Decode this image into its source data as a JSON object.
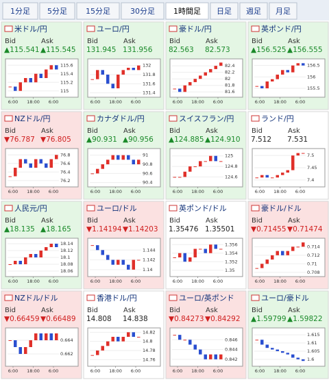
{
  "tabs": [
    "1分足",
    "5分足",
    "15分足",
    "30分足",
    "1時間足",
    "日足",
    "週足",
    "月足"
  ],
  "selected_tab": 4,
  "panels": [
    {
      "name": "米ドル/円",
      "change": "up",
      "bid": "▲115.541",
      "ask": "▲115.545",
      "yticks": [
        115.6,
        115.4,
        115.2,
        115
      ],
      "ylim": [
        114.9,
        115.7
      ],
      "xticks": [
        "6:00",
        "18:00",
        "6:00"
      ],
      "closes": [
        115.1,
        115.0,
        115.2,
        115.3,
        115.2,
        115.4,
        115.3,
        115.5,
        115.6,
        115.5
      ]
    },
    {
      "name": "ユーロ/円",
      "change": "up",
      "bid": "131.945",
      "ask": "131.956",
      "yticks": [
        132,
        131.8,
        131.6,
        131.4
      ],
      "ylim": [
        131.35,
        132.1
      ],
      "xticks": [
        "6:00",
        "18:00",
        "6:00"
      ],
      "closes": [
        131.7,
        131.9,
        131.8,
        131.6,
        131.5,
        131.8,
        131.9,
        131.95,
        131.9,
        132.0
      ]
    },
    {
      "name": "豪ドル/円",
      "change": "up",
      "bid": "82.563",
      "ask": "82.573",
      "yticks": [
        82.4,
        82.2,
        82,
        81.8,
        81.6
      ],
      "ylim": [
        81.5,
        82.55
      ],
      "xticks": [
        "6:00",
        "18:00",
        "6:00"
      ],
      "closes": [
        81.7,
        81.6,
        81.8,
        81.9,
        82.0,
        82.1,
        82.2,
        82.3,
        82.4,
        82.5
      ]
    },
    {
      "name": "英ポンド/円",
      "change": "up",
      "bid": "▲156.525",
      "ask": "▲156.555",
      "yticks": [
        156.5,
        156,
        155.5
      ],
      "ylim": [
        155.2,
        156.7
      ],
      "xticks": [
        "6:00",
        "18:00",
        "6:00"
      ],
      "closes": [
        155.6,
        155.5,
        155.8,
        155.9,
        156.1,
        156.3,
        156.2,
        156.5,
        156.6,
        156.5
      ]
    },
    {
      "name": "NZドル/円",
      "change": "down",
      "bid": "▼76.787",
      "ask": "▼76.805",
      "yticks": [
        76.8,
        76.6,
        76.4,
        76.2
      ],
      "ylim": [
        76.1,
        76.9
      ],
      "xticks": [
        "6:00",
        "18:00",
        "6:00"
      ],
      "closes": [
        76.3,
        76.5,
        76.7,
        76.6,
        76.5,
        76.7,
        76.6,
        76.5,
        76.7,
        76.8
      ]
    },
    {
      "name": "カナダドル/円",
      "change": "up",
      "bid": "▲90.931",
      "ask": "▲90.956",
      "yticks": [
        91,
        90.8,
        90.6,
        90.4
      ],
      "ylim": [
        90.35,
        91.1
      ],
      "xticks": [
        "6:00",
        "18:00",
        "6:00"
      ],
      "closes": [
        90.6,
        90.7,
        90.8,
        90.9,
        91.0,
        90.9,
        91.0,
        90.9,
        90.8,
        90.9
      ]
    },
    {
      "name": "スイスフラン/円",
      "change": "up",
      "bid": "▲124.885",
      "ask": "▲124.910",
      "yticks": [
        125,
        124.8,
        124.6
      ],
      "ylim": [
        124.45,
        125.1
      ],
      "xticks": [
        "6:00",
        "18:00",
        "6:00"
      ],
      "closes": [
        124.6,
        124.6,
        124.7,
        124.8,
        124.8,
        124.9,
        124.9,
        125.0,
        124.9,
        124.9
      ]
    },
    {
      "name": "ランド/円",
      "change": "none",
      "bid": "7.512",
      "ask": "7.531",
      "yticks": [
        7.5,
        7.45,
        7.4
      ],
      "ylim": [
        7.38,
        7.52
      ],
      "xticks": [
        "6:00",
        "18:00",
        "6:00"
      ],
      "closes": [
        7.41,
        7.42,
        7.41,
        7.41,
        7.42,
        7.43,
        7.44,
        7.5,
        7.51,
        7.51
      ]
    },
    {
      "name": "人民元/円",
      "change": "up",
      "bid": "▲18.135",
      "ask": "▲18.165",
      "yticks": [
        18.14,
        18.12,
        18.1,
        18.08,
        18.06
      ],
      "ylim": [
        18.05,
        18.15
      ],
      "xticks": [
        "6:00",
        "18:00",
        "6:00"
      ],
      "closes": [
        18.08,
        18.09,
        18.08,
        18.1,
        18.11,
        18.1,
        18.12,
        18.13,
        18.14,
        18.13
      ]
    },
    {
      "name": "ユーロ/ドル",
      "change": "down",
      "bid": "▼1.14194",
      "ask": "▼1.14203",
      "yticks": [
        1.144,
        1.142,
        1.14
      ],
      "ylim": [
        1.139,
        1.146
      ],
      "xticks": [
        "6:00",
        "18:00",
        "6:00"
      ],
      "closes": [
        1.145,
        1.144,
        1.143,
        1.142,
        1.141,
        1.142,
        1.141,
        1.14,
        1.142,
        1.142
      ]
    },
    {
      "name": "英ポンド/ドル",
      "change": "none",
      "bid": "1.35476",
      "ask": "1.35501",
      "yticks": [
        1.356,
        1.354,
        1.352,
        1.35
      ],
      "ylim": [
        1.349,
        1.357
      ],
      "xticks": [
        "6:00",
        "18:00",
        "6:00"
      ],
      "closes": [
        1.353,
        1.354,
        1.352,
        1.353,
        1.355,
        1.355,
        1.354,
        1.356,
        1.355,
        1.355
      ]
    },
    {
      "name": "豪ドル/ドル",
      "change": "down",
      "bid": "▼0.71455",
      "ask": "▼0.71474",
      "yticks": [
        0.714,
        0.712,
        0.71,
        0.708
      ],
      "ylim": [
        0.7075,
        0.7155
      ],
      "xticks": [
        "6:00",
        "18:00",
        "6:00"
      ],
      "closes": [
        0.709,
        0.71,
        0.711,
        0.712,
        0.713,
        0.712,
        0.713,
        0.714,
        0.714,
        0.715
      ]
    },
    {
      "name": "NZドル/ドル",
      "change": "down",
      "bid": "▼0.66459",
      "ask": "▼0.66489",
      "yticks": [
        0.664,
        0.662
      ],
      "ylim": [
        0.6605,
        0.6655
      ],
      "xticks": [
        "6:00",
        "18:00",
        "6:00"
      ],
      "closes": [
        0.664,
        0.663,
        0.662,
        0.663,
        0.664,
        0.665,
        0.664,
        0.665,
        0.664,
        0.665
      ]
    },
    {
      "name": "香港ドル/円",
      "change": "none",
      "bid": "14.808",
      "ask": "14.838",
      "yticks": [
        14.82,
        14.8,
        14.78,
        14.76
      ],
      "ylim": [
        14.75,
        14.825
      ],
      "xticks": [
        "6:00",
        "18:00",
        "6:00"
      ],
      "closes": [
        14.77,
        14.78,
        14.79,
        14.8,
        14.81,
        14.8,
        14.81,
        14.82,
        14.81,
        14.81
      ]
    },
    {
      "name": "ユーロ/英ポンド",
      "change": "down",
      "bid": "▼0.84273",
      "ask": "▼0.84292",
      "yticks": [
        0.846,
        0.844,
        0.842
      ],
      "ylim": [
        0.841,
        0.848
      ],
      "xticks": [
        "6:00",
        "18:00",
        "6:00"
      ],
      "closes": [
        0.847,
        0.846,
        0.846,
        0.845,
        0.844,
        0.843,
        0.842,
        0.843,
        0.842,
        0.843
      ]
    },
    {
      "name": "ユーロ/豪ドル",
      "change": "up",
      "bid": "▲1.59799",
      "ask": "▲1.59822",
      "yticks": [
        1.615,
        1.61,
        1.605,
        1.6
      ],
      "ylim": [
        1.597,
        1.618
      ],
      "xticks": [
        "6:00",
        "18:00",
        "6:00"
      ],
      "closes": [
        1.612,
        1.609,
        1.607,
        1.606,
        1.605,
        1.604,
        1.603,
        1.601,
        1.6,
        1.599
      ]
    }
  ],
  "labels": {
    "bid": "Bid",
    "ask": "Ask"
  }
}
